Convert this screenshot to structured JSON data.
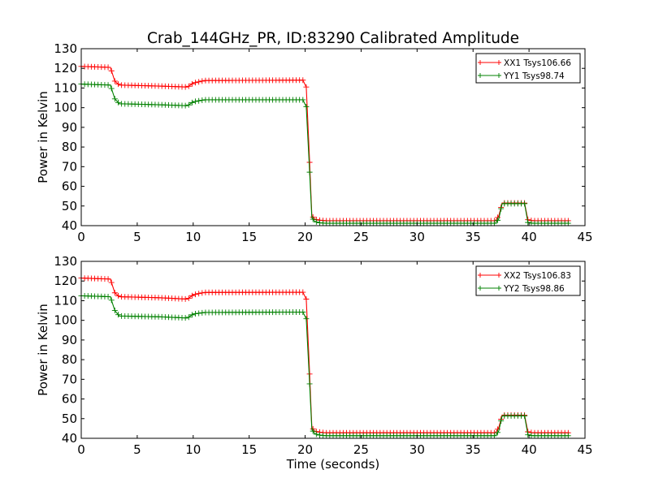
{
  "figure": {
    "title": "Crab_144GHz_PR, ID:83290 Calibrated Amplitude"
  },
  "chart_data": [
    {
      "type": "line",
      "title": "Crab_144GHz_PR, ID:83290 Calibrated Amplitude",
      "xlabel": "",
      "ylabel": "Power in Kelvin",
      "xlim": [
        0,
        45
      ],
      "ylim": [
        40,
        130
      ],
      "xticks": [
        0,
        5,
        10,
        15,
        20,
        25,
        30,
        35,
        40,
        45
      ],
      "yticks": [
        40,
        50,
        60,
        70,
        80,
        90,
        100,
        110,
        120,
        130
      ],
      "grid": false,
      "legend": "top-right",
      "series": [
        {
          "name": "XX1 Tsys106.66",
          "color": "#ff0000",
          "marker": "plus",
          "x": [
            0.0,
            2.6,
            3.0,
            3.4,
            7.0,
            9.5,
            10.0,
            11.0,
            19.8,
            20.1,
            20.35,
            20.6,
            20.85,
            21.2,
            21.8,
            37.0,
            37.3,
            37.6,
            39.6,
            39.9,
            40.3,
            43.6
          ],
          "y": [
            121,
            120.5,
            113.5,
            111.5,
            111,
            110.5,
            112.5,
            113.8,
            114,
            110.5,
            79,
            45,
            43.3,
            42.8,
            42.5,
            42.5,
            45,
            51.5,
            51.5,
            43,
            42.5,
            42.5
          ]
        },
        {
          "name": "YY1 Tsys98.74",
          "color": "#008000",
          "marker": "plus",
          "x": [
            0.0,
            2.6,
            3.0,
            3.4,
            7.0,
            9.5,
            10.0,
            11.0,
            19.8,
            20.1,
            20.35,
            20.6,
            20.85,
            21.2,
            21.8,
            37.0,
            37.3,
            37.6,
            39.6,
            39.9,
            40.3,
            43.6
          ],
          "y": [
            112,
            111.5,
            104.5,
            102,
            101.5,
            101,
            103,
            104,
            104,
            100.5,
            73,
            44,
            42.2,
            41.5,
            41.2,
            41.2,
            43.5,
            51.2,
            51.2,
            41.6,
            41.2,
            41.2
          ]
        }
      ]
    },
    {
      "type": "line",
      "title": "",
      "xlabel": "Time (seconds)",
      "ylabel": "Power in Kelvin",
      "xlim": [
        0,
        45
      ],
      "ylim": [
        40,
        130
      ],
      "xticks": [
        0,
        5,
        10,
        15,
        20,
        25,
        30,
        35,
        40,
        45
      ],
      "yticks": [
        40,
        50,
        60,
        70,
        80,
        90,
        100,
        110,
        120,
        130
      ],
      "grid": false,
      "legend": "top-right",
      "series": [
        {
          "name": "XX2 Tsys106.83",
          "color": "#ff0000",
          "marker": "plus",
          "x": [
            0.0,
            2.6,
            3.0,
            3.4,
            7.0,
            9.5,
            10.0,
            11.0,
            19.8,
            20.1,
            20.35,
            20.6,
            20.85,
            21.2,
            21.8,
            37.0,
            37.3,
            37.6,
            39.6,
            39.9,
            40.3,
            43.6
          ],
          "y": [
            121.5,
            121,
            114,
            112,
            111.5,
            110.8,
            113,
            114.2,
            114.3,
            110.8,
            79.5,
            45.5,
            43.6,
            43.2,
            42.8,
            42.8,
            45.5,
            51.8,
            51.8,
            43.3,
            42.8,
            42.8
          ]
        },
        {
          "name": "YY2 Tsys98.86",
          "color": "#008000",
          "marker": "plus",
          "x": [
            0.0,
            2.6,
            3.0,
            3.4,
            7.0,
            9.5,
            10.0,
            11.0,
            19.8,
            20.1,
            20.35,
            20.6,
            20.85,
            21.2,
            21.8,
            37.0,
            37.3,
            37.6,
            39.6,
            39.9,
            40.3,
            43.6
          ],
          "y": [
            112.5,
            112,
            105,
            102.2,
            101.8,
            101.2,
            103.2,
            104,
            104.2,
            100.8,
            73.5,
            44.5,
            42.4,
            41.7,
            41.3,
            41.3,
            43.8,
            51.4,
            51.4,
            41.8,
            41.3,
            41.3
          ]
        }
      ]
    }
  ]
}
